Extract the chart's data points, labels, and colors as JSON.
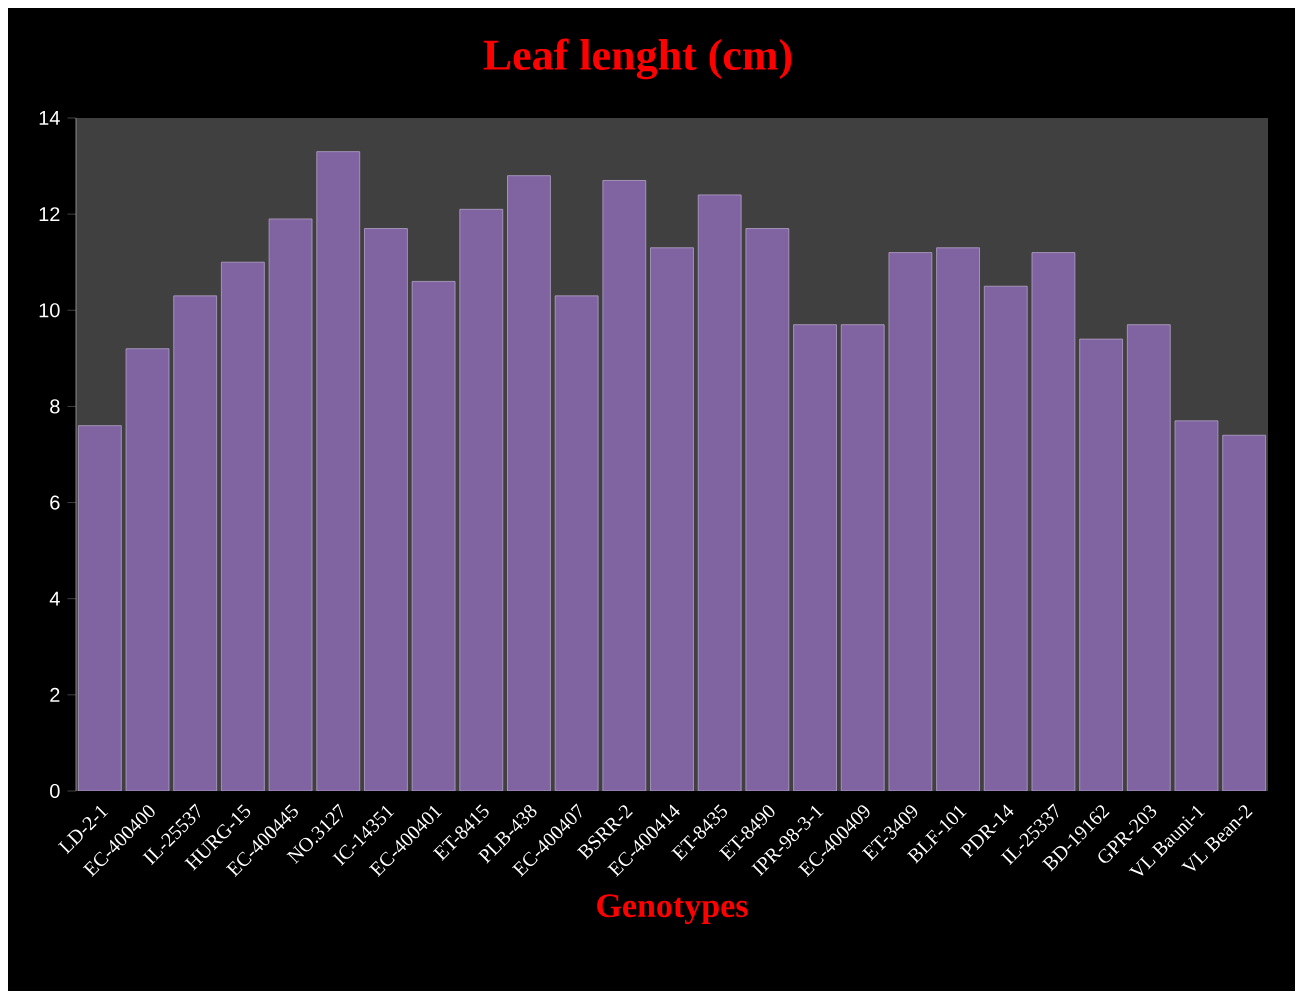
{
  "chart_data": {
    "type": "bar",
    "title": "Leaf lenght (cm)",
    "xlabel": "Genotypes",
    "categories": [
      "LD-2-1",
      "EC-400400",
      "IL-25537",
      "HURG-15",
      "EC-400445",
      "NO.3127",
      "IC-14351",
      "EC-400401",
      "ET-8415",
      "PLB-438",
      "EC-400407",
      "BSRR-2",
      "EC-400414",
      "ET-8435",
      "ET-8490",
      "IPR-98-3-1",
      "EC-400409",
      "ET-3409",
      "BLF-101",
      "PDR-14",
      "IL-25337",
      "BD-19162",
      "GPR-203",
      "VL Bauni-1",
      "VL Bean-2"
    ],
    "values": [
      7.6,
      9.2,
      10.3,
      11.0,
      11.9,
      13.3,
      11.7,
      10.6,
      12.1,
      12.8,
      10.3,
      12.7,
      11.3,
      12.4,
      11.7,
      9.7,
      9.7,
      11.2,
      11.3,
      10.5,
      11.2,
      9.4,
      9.7,
      7.7,
      7.4
    ],
    "color": "#8064a2",
    "ylim": [
      0,
      14
    ],
    "yticks": [
      0,
      2,
      4,
      6,
      8,
      10,
      12,
      14
    ]
  }
}
